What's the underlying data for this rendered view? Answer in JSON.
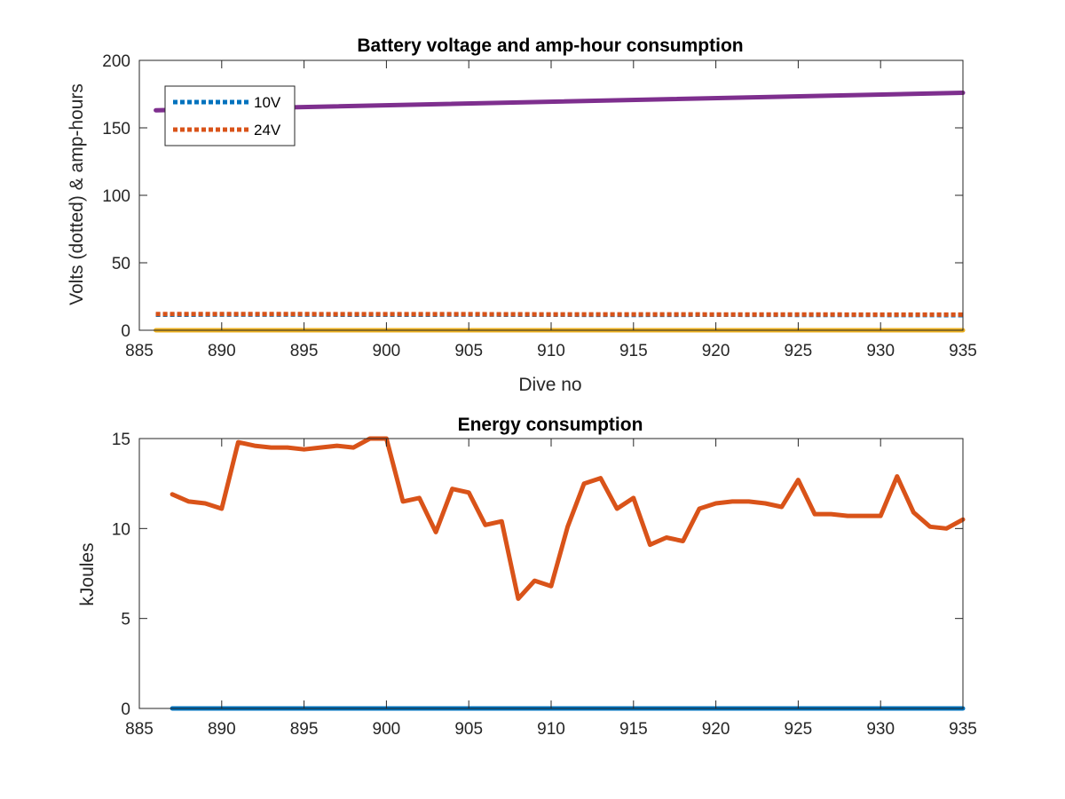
{
  "chart_data": [
    {
      "type": "line",
      "title": "Battery voltage and amp-hour consumption",
      "xlabel": "Dive no",
      "ylabel": "Volts (dotted) & amp-hours",
      "xlim": [
        885,
        935
      ],
      "ylim": [
        0,
        200
      ],
      "xticks": [
        "885",
        "890",
        "895",
        "900",
        "905",
        "910",
        "915",
        "920",
        "925",
        "930",
        "935"
      ],
      "yticks": [
        "0",
        "50",
        "100",
        "150",
        "200"
      ],
      "grid": false,
      "legend_position": "top-left",
      "series": [
        {
          "name": "10V",
          "color": "#0072BD",
          "style": "dotted",
          "x": [
            886,
            890,
            895,
            900,
            905,
            910,
            915,
            920,
            925,
            930,
            935
          ],
          "y": [
            11.5,
            11.6,
            11.6,
            11.5,
            11.6,
            11.5,
            11.4,
            11.5,
            11.4,
            11.3,
            11.2
          ]
        },
        {
          "name": "24V",
          "color": "#D95319",
          "style": "dotted",
          "x": [
            886,
            890,
            895,
            900,
            905,
            910,
            915,
            920,
            925,
            930,
            935
          ],
          "y": [
            12.0,
            12.0,
            12.0,
            11.9,
            11.9,
            11.8,
            11.8,
            11.7,
            11.7,
            11.6,
            11.6
          ]
        },
        {
          "color": "#7E2F8E",
          "style": "solid",
          "x": [
            886,
            935
          ],
          "y": [
            163,
            176
          ]
        },
        {
          "color": "#EDB120",
          "style": "solid",
          "x": [
            886,
            935
          ],
          "y": [
            0,
            0
          ]
        }
      ]
    },
    {
      "type": "line",
      "title": "Energy consumption",
      "ylabel": "kJoules",
      "xlim": [
        885,
        935
      ],
      "ylim": [
        0,
        15
      ],
      "xticks": [
        "885",
        "890",
        "895",
        "900",
        "905",
        "910",
        "915",
        "920",
        "925",
        "930",
        "935"
      ],
      "yticks": [
        "0",
        "5",
        "10",
        "15"
      ],
      "grid": false,
      "series": [
        {
          "color": "#0072BD",
          "style": "solid",
          "x": [
            887,
            935
          ],
          "y": [
            0,
            0
          ]
        },
        {
          "color": "#D95319",
          "style": "solid",
          "x": [
            887,
            888,
            889,
            890,
            891,
            892,
            893,
            894,
            895,
            896,
            897,
            898,
            899,
            900,
            901,
            902,
            903,
            904,
            905,
            906,
            907,
            908,
            909,
            910,
            911,
            912,
            913,
            914,
            915,
            916,
            917,
            918,
            919,
            920,
            921,
            922,
            923,
            924,
            925,
            926,
            927,
            928,
            929,
            930,
            931,
            932,
            933,
            934,
            935
          ],
          "y": [
            11.9,
            11.5,
            11.4,
            11.1,
            14.8,
            14.6,
            14.5,
            14.5,
            14.4,
            14.5,
            14.6,
            14.5,
            15.0,
            15.0,
            11.5,
            11.7,
            9.8,
            12.2,
            12.0,
            10.2,
            10.4,
            6.1,
            7.1,
            6.8,
            10.1,
            12.5,
            12.8,
            11.1,
            11.7,
            9.1,
            9.5,
            9.3,
            11.1,
            11.4,
            11.5,
            11.5,
            11.4,
            11.2,
            12.7,
            10.8,
            10.8,
            10.7,
            10.7,
            10.7,
            12.9,
            10.9,
            10.1,
            10.0,
            10.5
          ]
        }
      ]
    }
  ]
}
